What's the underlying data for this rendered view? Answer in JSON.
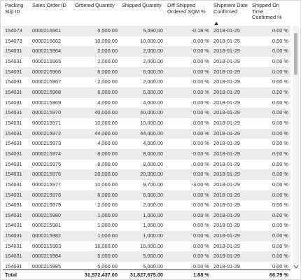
{
  "table": {
    "columns": [
      "Packing Slip ID",
      "Sales Order ID",
      "Ordered Quantity",
      "Shipped Quantity",
      "Diff Shipped Ordered SQM %",
      "Shipment Date Confirmed",
      "Shipped On Time Confirmed %"
    ],
    "rows": [
      [
        "154073",
        "0000216661",
        "5,500.00",
        "5,490.00",
        "-0.18 %",
        "2018-01-25",
        "0.00 %"
      ],
      [
        "154073",
        "0000216662",
        "10,000.00",
        "10,000.00",
        "0.00 %",
        "2018-01-25",
        "0.00 %"
      ],
      [
        "154031",
        "0000215964",
        "2,000.00",
        "2,000.00",
        "0.00 %",
        "2018-01-29",
        "0.00 %"
      ],
      [
        "154031",
        "0000215965",
        "2,000.00",
        "2,000.00",
        "0.00 %",
        "2018-01-29",
        "0.00 %"
      ],
      [
        "154031",
        "0000215966",
        "6,000.00",
        "6,000.00",
        "0.00 %",
        "2018-01-29",
        "0.00 %"
      ],
      [
        "154031",
        "0000215967",
        "2,000.00",
        "2,000.00",
        "0.00 %",
        "2018-01-29",
        "0.00 %"
      ],
      [
        "154031",
        "0000215968",
        "6,000.00",
        "6,000.00",
        "0.00 %",
        "2018-01-29",
        "0.00 %"
      ],
      [
        "154031",
        "0000215969",
        "4,000.00",
        "4,000.00",
        "0.00 %",
        "2018-01-29",
        "0.00 %"
      ],
      [
        "154031",
        "0000215970",
        "40,000.00",
        "40,000.00",
        "0.00 %",
        "2018-01-29",
        "0.00 %"
      ],
      [
        "154031",
        "0000215971",
        "10,000.00",
        "10,000.00",
        "0.00 %",
        "2018-01-29",
        "0.00 %"
      ],
      [
        "154031",
        "0000215972",
        "44,000.00",
        "44,000.00",
        "0.00 %",
        "2018-01-29",
        "0.00 %"
      ],
      [
        "154031",
        "0000215973",
        "4,000.00",
        "4,000.00",
        "0.00 %",
        "2018-01-29",
        "0.00 %"
      ],
      [
        "154031",
        "0000215974",
        "8,000.00",
        "8,000.00",
        "0.00 %",
        "2018-01-29",
        "0.00 %"
      ],
      [
        "154031",
        "0000215975",
        "8,000.00",
        "8,000.00",
        "0.00 %",
        "2018-01-29",
        "0.00 %"
      ],
      [
        "154031",
        "0000215976",
        "20,000.00",
        "20,000.00",
        "0.00 %",
        "2018-01-29",
        "0.00 %"
      ],
      [
        "154031",
        "0000215977",
        "10,000.00",
        "9,700.00",
        "-3.00 %",
        "2018-01-29",
        "0.00 %"
      ],
      [
        "154031",
        "0000215978",
        "6,000.00",
        "6,000.00",
        "0.00 %",
        "2018-01-29",
        "0.00 %"
      ],
      [
        "154031",
        "0000215979",
        "2,000.00",
        "2,000.00",
        "0.00 %",
        "2018-01-29",
        "0.00 %"
      ],
      [
        "154031",
        "0000215980",
        "1,000.00",
        "1,000.00",
        "0.00 %",
        "2018-01-29",
        "0.00 %"
      ],
      [
        "154031",
        "0000215981",
        "1,000.00",
        "1,000.00",
        "0.00 %",
        "2018-01-29",
        "0.00 %"
      ],
      [
        "154031",
        "0000215982",
        "1,000.00",
        "1,000.00",
        "0.00 %",
        "2018-01-29",
        "0.00 %"
      ],
      [
        "154031",
        "0000215983",
        "16,000.00",
        "16,000.00",
        "0.00 %",
        "2018-01-29",
        "0.00 %"
      ],
      [
        "154031",
        "0000215984",
        "5,000.00",
        "5,000.00",
        "0.00 %",
        "2018-01-29",
        "0.00 %"
      ],
      [
        "154031",
        "0000215985",
        "5,000.00",
        "5,000.00",
        "0.00 %",
        "2018-01-29",
        "0.00 %"
      ]
    ],
    "total": [
      "Total",
      null,
      "31,572,437.00",
      "31,827,675.00",
      "1.88 %",
      null,
      "66.79 %"
    ]
  }
}
